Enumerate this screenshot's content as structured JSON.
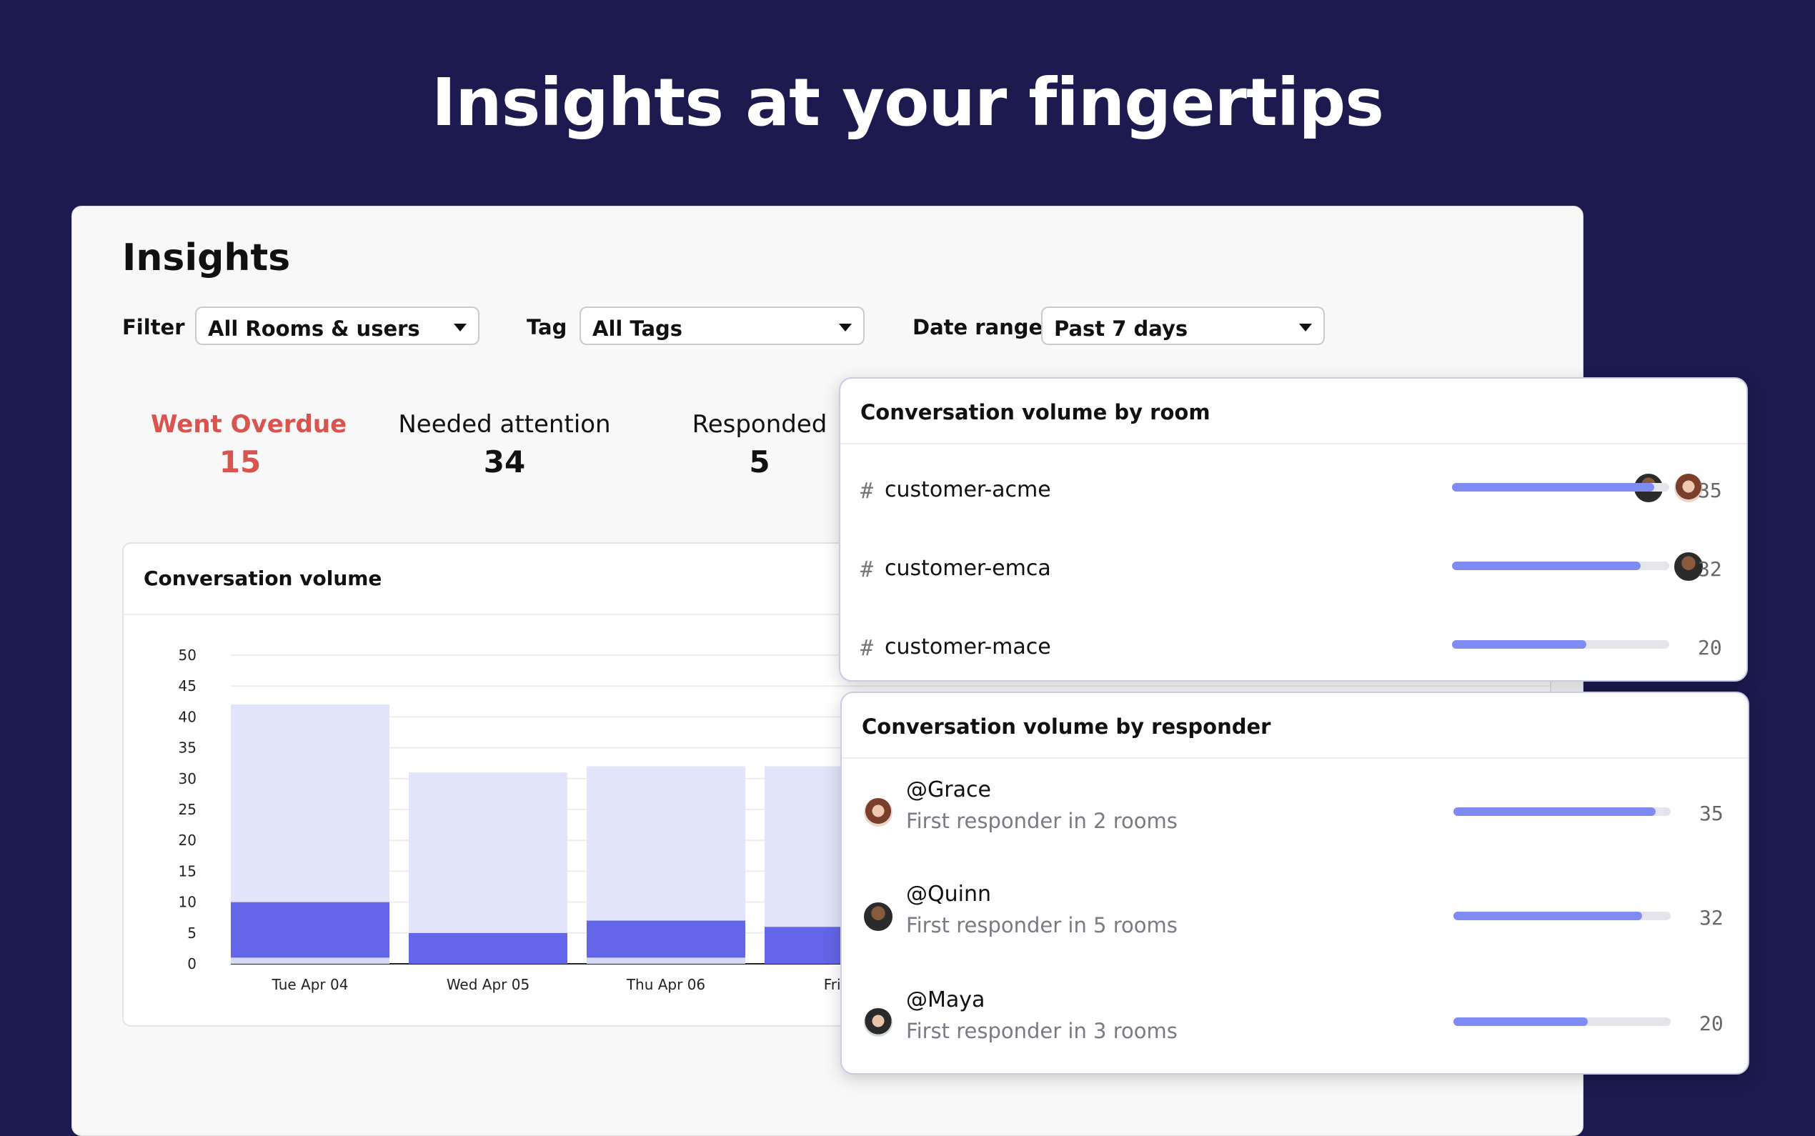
{
  "hero": {
    "title": "Insights at your fingertips"
  },
  "insights": {
    "title": "Insights",
    "filters": [
      {
        "label": "Filter",
        "value": "All Rooms & users"
      },
      {
        "label": "Tag",
        "value": "All Tags"
      },
      {
        "label": "Date range",
        "value": "Past 7 days"
      }
    ],
    "stats": [
      {
        "label": "Went Overdue",
        "value": "15"
      },
      {
        "label": "Needed attention",
        "value": "34"
      },
      {
        "label": "Responded",
        "value": "5"
      }
    ]
  },
  "volume_chart": {
    "title": "Conversation volume"
  },
  "chart_data": {
    "type": "bar",
    "stacked": true,
    "categories": [
      "Tue Apr 04",
      "Wed Apr 05",
      "Thu Apr 06",
      "Fri Ap"
    ],
    "series": [
      {
        "color": "#d6daf5",
        "values": [
          1,
          0,
          1,
          0
        ]
      },
      {
        "color": "#6366e6",
        "values": [
          9,
          5,
          6,
          6
        ]
      },
      {
        "color": "#e1e4fa",
        "values": [
          32,
          26,
          25,
          26
        ]
      }
    ],
    "ylim": [
      0,
      50
    ],
    "yticks": [
      "0",
      "5",
      "10",
      "15",
      "20",
      "25",
      "30",
      "35",
      "40",
      "45",
      "50"
    ],
    "grid": true
  },
  "rooms_card": {
    "title": "Conversation volume by room",
    "rows": [
      {
        "hash": "#",
        "name": "customer-acme",
        "count": "35",
        "fill_fraction": 0.93,
        "avatars": [
          "avatar-man",
          "avatar-woman"
        ]
      },
      {
        "hash": "#",
        "name": "customer-emca",
        "count": "32",
        "fill_fraction": 0.87,
        "avatars": [
          "avatar-man"
        ]
      },
      {
        "hash": "#",
        "name": "customer-mace",
        "count": "20",
        "fill_fraction": 0.62,
        "avatars": []
      }
    ]
  },
  "responders_card": {
    "title": "Conversation volume by responder",
    "rows": [
      {
        "name": "@Grace",
        "sub": "First responder in 2 rooms",
        "count": "35",
        "fill_fraction": 0.93
      },
      {
        "name": "@Quinn",
        "sub": "First responder in 5 rooms",
        "count": "32",
        "fill_fraction": 0.87
      },
      {
        "name": "@Maya",
        "sub": "First responder in 3 rooms",
        "count": "20",
        "fill_fraction": 0.62
      }
    ]
  }
}
